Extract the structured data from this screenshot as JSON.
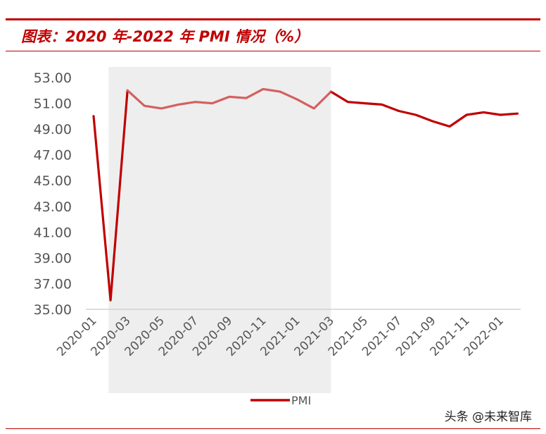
{
  "title": "图表：2020 年-2022 年 PMI 情况（%）",
  "watermark": "头条 @未来智库",
  "colors": {
    "brand_red": "#c00000",
    "line_main": "#c00000",
    "line_highlight": "#d46060",
    "shade": "#eeeeee"
  },
  "chart_data": {
    "type": "line",
    "title": "",
    "xlabel": "",
    "ylabel": "",
    "x": [
      "2020-01",
      "2020-02",
      "2020-03",
      "2020-04",
      "2020-05",
      "2020-06",
      "2020-07",
      "2020-08",
      "2020-09",
      "2020-10",
      "2020-11",
      "2020-12",
      "2021-01",
      "2021-02",
      "2021-03",
      "2021-04",
      "2021-05",
      "2021-06",
      "2021-07",
      "2021-08",
      "2021-09",
      "2021-10",
      "2021-11",
      "2021-12",
      "2022-01",
      "2022-02"
    ],
    "xtick_labels": [
      "2020-01",
      "2020-03",
      "2020-05",
      "2020-07",
      "2020-09",
      "2020-11",
      "2021-01",
      "2021-03",
      "2021-05",
      "2021-07",
      "2021-09",
      "2021-11",
      "2022-01"
    ],
    "ytick_labels": [
      "35.00",
      "37.00",
      "39.00",
      "41.00",
      "43.00",
      "45.00",
      "47.00",
      "49.00",
      "51.00",
      "53.00"
    ],
    "ylim": [
      35,
      53
    ],
    "grid": false,
    "legend_position": "bottom-center",
    "series": [
      {
        "name": "PMI",
        "values": [
          50.0,
          35.7,
          52.0,
          50.8,
          50.6,
          50.9,
          51.1,
          51.0,
          51.5,
          51.4,
          52.1,
          51.9,
          51.3,
          50.6,
          51.9,
          51.1,
          51.0,
          50.9,
          50.4,
          50.1,
          49.6,
          49.2,
          50.1,
          50.3,
          50.1,
          50.2
        ]
      }
    ],
    "highlight_range": [
      "2020-03",
      "2021-03"
    ]
  }
}
